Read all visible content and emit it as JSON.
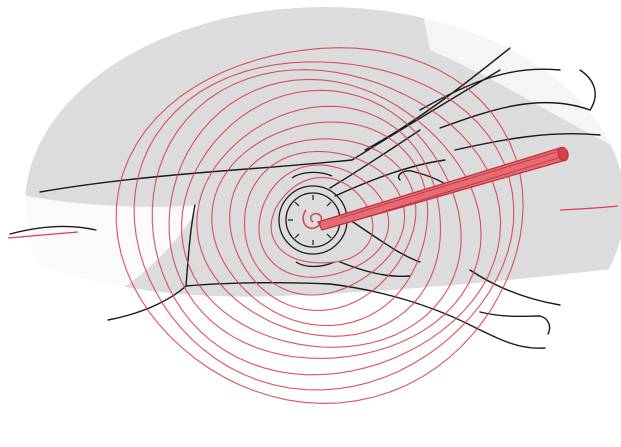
{
  "colors": {
    "background": "#ffffff",
    "backdrop": "#dcdcdc",
    "ink": "#1a1a1a",
    "red": "#d8404c",
    "red_light": "#e46a74",
    "red_dark": "#c0303a"
  },
  "scene": {
    "subject": "pencil-sketch",
    "elements": [
      "grey-ellipse-backdrop",
      "black-line-arm-outline",
      "watch-dial",
      "red-concentric-circles",
      "red-pointer-rod"
    ]
  }
}
